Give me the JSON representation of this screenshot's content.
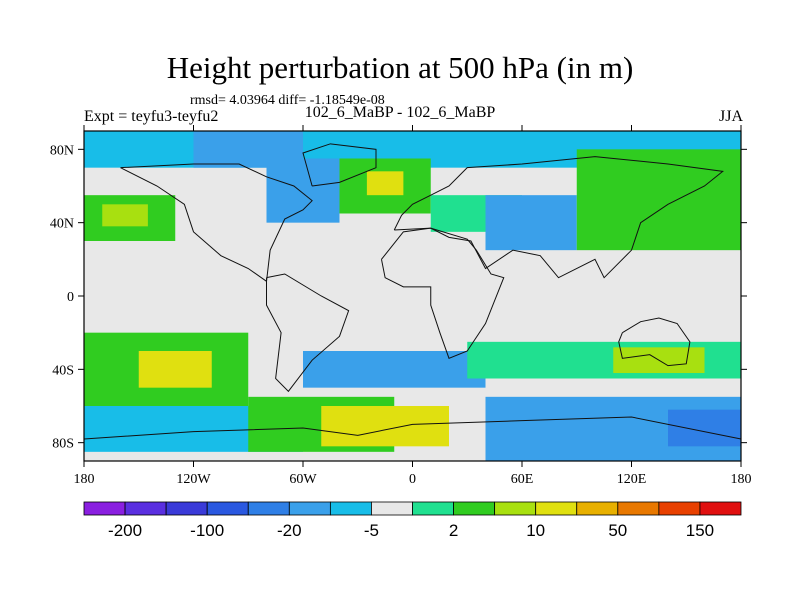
{
  "chart_data": {
    "type": "heatmap",
    "title": "Height perturbation at 500 hPa (in m)",
    "stats": "rmsd= 4.03964 diff= -1.18549e-08",
    "left_label": "Expt = teyfu3-teyfu2",
    "center_label": "102_6_MaBP - 102_6_MaBP",
    "right_label": "JJA",
    "xlim": [
      -180,
      180
    ],
    "ylim": [
      -90,
      90
    ],
    "xticks": [
      {
        "value": -180,
        "label": "180"
      },
      {
        "value": -120,
        "label": "120W"
      },
      {
        "value": -60,
        "label": "60W"
      },
      {
        "value": 0,
        "label": "0"
      },
      {
        "value": 60,
        "label": "60E"
      },
      {
        "value": 120,
        "label": "120E"
      },
      {
        "value": 180,
        "label": "180"
      }
    ],
    "yticks": [
      {
        "value": 80,
        "label": "80N"
      },
      {
        "value": 40,
        "label": "40N"
      },
      {
        "value": 0,
        "label": "0"
      },
      {
        "value": -40,
        "label": "40S"
      },
      {
        "value": -80,
        "label": "80S"
      }
    ],
    "colorbar": {
      "colors": [
        "#8a1fe0",
        "#5a2fe0",
        "#3a3ad8",
        "#2a58e0",
        "#2f7fe6",
        "#3aa0ea",
        "#18bde8",
        "#e8e8e8",
        "#20e090",
        "#30cc20",
        "#a8e010",
        "#e0e010",
        "#e8b000",
        "#e87800",
        "#e84000",
        "#e01010"
      ],
      "labels": [
        "-200",
        "-100",
        "-20",
        "-5",
        "2",
        "10",
        "50",
        "150"
      ]
    },
    "field_regions": [
      {
        "lon": [
          -180,
          180
        ],
        "lat": [
          -90,
          90
        ],
        "value": 0
      },
      {
        "lon": [
          -180,
          -90
        ],
        "lat": [
          -60,
          -20
        ],
        "value": 8
      },
      {
        "lon": [
          -150,
          -110
        ],
        "lat": [
          -50,
          -30
        ],
        "value": 40
      },
      {
        "lon": [
          -180,
          -60
        ],
        "lat": [
          -85,
          -60
        ],
        "value": -4
      },
      {
        "lon": [
          -90,
          -10
        ],
        "lat": [
          -85,
          -55
        ],
        "value": 8
      },
      {
        "lon": [
          -50,
          20
        ],
        "lat": [
          -82,
          -60
        ],
        "value": 30
      },
      {
        "lon": [
          -60,
          40
        ],
        "lat": [
          -50,
          -30
        ],
        "value": -5
      },
      {
        "lon": [
          40,
          180
        ],
        "lat": [
          -90,
          -55
        ],
        "value": -5
      },
      {
        "lon": [
          140,
          180
        ],
        "lat": [
          -82,
          -62
        ],
        "value": -12
      },
      {
        "lon": [
          30,
          180
        ],
        "lat": [
          -45,
          -25
        ],
        "value": 5
      },
      {
        "lon": [
          110,
          160
        ],
        "lat": [
          -42,
          -28
        ],
        "value": 12
      },
      {
        "lon": [
          -180,
          180
        ],
        "lat": [
          70,
          90
        ],
        "value": -4
      },
      {
        "lon": [
          -80,
          -40
        ],
        "lat": [
          40,
          75
        ],
        "value": -5
      },
      {
        "lon": [
          -40,
          10
        ],
        "lat": [
          45,
          75
        ],
        "value": 8
      },
      {
        "lon": [
          -25,
          -5
        ],
        "lat": [
          55,
          68
        ],
        "value": 30
      },
      {
        "lon": [
          -180,
          -130
        ],
        "lat": [
          30,
          55
        ],
        "value": 6
      },
      {
        "lon": [
          -170,
          -145
        ],
        "lat": [
          38,
          50
        ],
        "value": 12
      },
      {
        "lon": [
          10,
          60
        ],
        "lat": [
          35,
          55
        ],
        "value": 5
      },
      {
        "lon": [
          40,
          90
        ],
        "lat": [
          25,
          55
        ],
        "value": -5
      },
      {
        "lon": [
          90,
          180
        ],
        "lat": [
          25,
          80
        ],
        "value": 6
      },
      {
        "lon": [
          120,
          170
        ],
        "lat": [
          55,
          78
        ],
        "value": 10
      },
      {
        "lon": [
          -120,
          -60
        ],
        "lat": [
          70,
          90
        ],
        "value": -8
      }
    ]
  }
}
